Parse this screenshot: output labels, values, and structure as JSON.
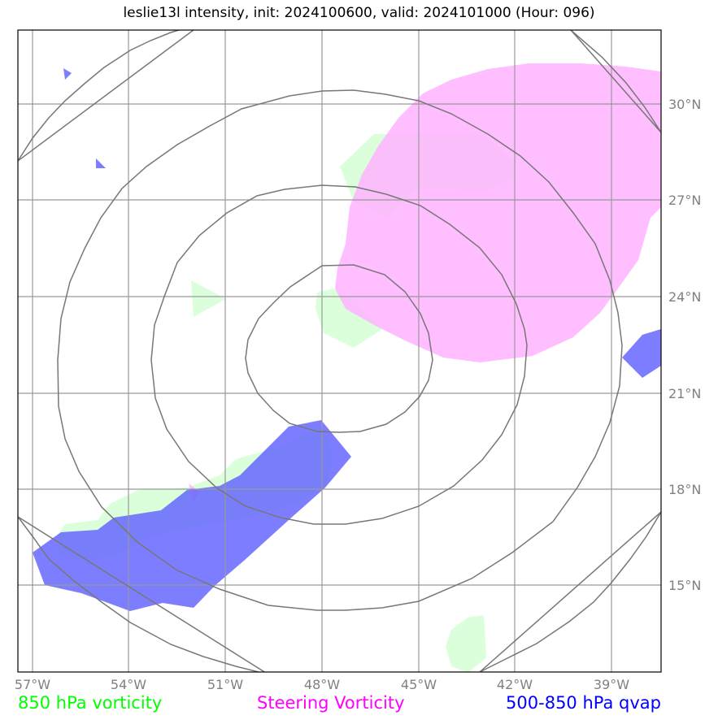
{
  "title": "leslie13l intensity, init: 2024100600, valid: 2024101000 (Hour: 096)",
  "legend": {
    "vort850": {
      "label": "850 hPa vorticity",
      "color": "#00ff00"
    },
    "steering": {
      "label": "Steering Vorticity",
      "color": "#ff00ff"
    },
    "qvap": {
      "label": "500-850 hPa qvap",
      "color": "#0000ff"
    }
  },
  "lon_labels": [
    "57°W",
    "54°W",
    "51°W",
    "48°W",
    "45°W",
    "42°W",
    "39°W"
  ],
  "lat_labels": [
    "30°N",
    "27°N",
    "24°N",
    "21°N",
    "18°N",
    "15°N"
  ],
  "colors": {
    "vort850_fill": "#ccffcc",
    "steering_fill": "#ffb3ff",
    "qvap_fill": "#6666ff",
    "grid": "#999999",
    "range_rings": "#777777",
    "frame": "#000000"
  }
}
